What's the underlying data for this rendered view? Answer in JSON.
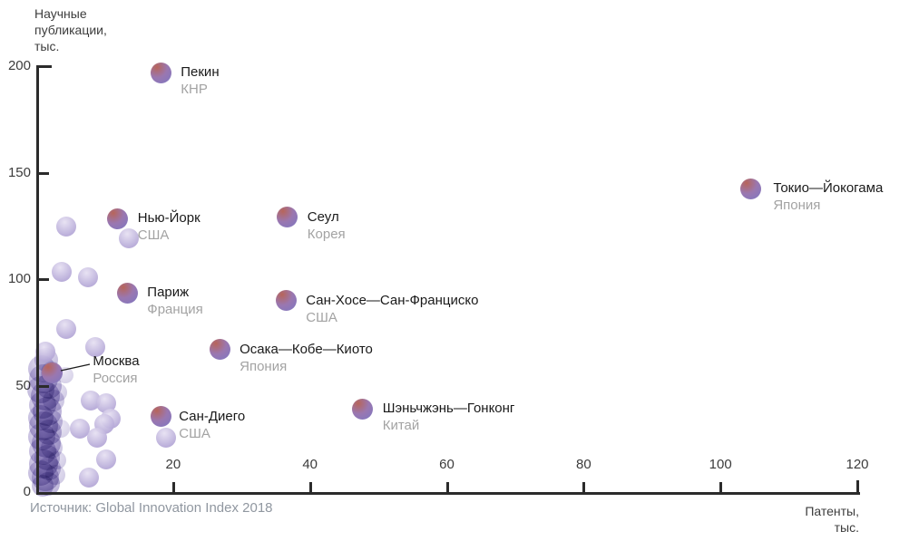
{
  "chart_data": {
    "type": "scatter",
    "ylabel": "Научные\nпубликации,\nтыс.",
    "xlabel": "Патенты,\nтыс.",
    "source": "Источник: Global Innovation Index 2018",
    "xlim": [
      0,
      120
    ],
    "ylim": [
      0,
      200
    ],
    "x_ticks": [
      20,
      40,
      60,
      80,
      100,
      120
    ],
    "y_ticks": [
      0,
      50,
      100,
      150,
      200
    ],
    "grid": false,
    "colors": {
      "city_bubble_red": "#b7655a",
      "city_bubble_purple": "#8577bd",
      "light_bubble": "#b3a6d6",
      "cluster_bubble": "#7a6ab3",
      "axis": "#2b2b2b",
      "city_text": "#1a1a1a",
      "country_text": "#a3a3a3"
    },
    "series": [
      {
        "name": "labeled-cities",
        "points": [
          {
            "city": "Пекин",
            "country": "КНР",
            "x": 18.2,
            "y": 197
          },
          {
            "city": "Токио—Йокогама",
            "country": "Япония",
            "x": 104.4,
            "y": 142.5,
            "dx": 25
          },
          {
            "city": "Нью-Йорк",
            "country": "США",
            "x": 11.9,
            "y": 128.5
          },
          {
            "city": "Сеул",
            "country": "Корея",
            "x": 36.7,
            "y": 129
          },
          {
            "city": "Париж",
            "country": "Франция",
            "x": 13.3,
            "y": 93.5
          },
          {
            "city": "Сан-Хосе—Сан-Франциско",
            "country": "США",
            "x": 36.5,
            "y": 90
          },
          {
            "city": "Осака—Кобе—Киото",
            "country": "Япония",
            "x": 26.8,
            "y": 67
          },
          {
            "city": "Москва",
            "country": "Россия",
            "x": 2.3,
            "y": 56,
            "dx": 45,
            "dy": -22,
            "leader": true
          },
          {
            "city": "Сан-Диего",
            "country": "США",
            "x": 18.2,
            "y": 35.5,
            "dx": 20
          },
          {
            "city": "Шэньчжэнь—Гонконг",
            "country": "Китай",
            "x": 47.7,
            "y": 39
          }
        ]
      },
      {
        "name": "unlabeled-light",
        "points": [
          [
            4.4,
            124.5
          ],
          [
            13.5,
            119
          ],
          [
            3.7,
            103.5
          ],
          [
            7.6,
            101
          ],
          [
            4.4,
            76.5
          ],
          [
            8.6,
            68
          ],
          [
            1.3,
            66
          ],
          [
            8,
            43
          ],
          [
            10.2,
            41.5
          ],
          [
            10.9,
            34.5
          ],
          [
            9.9,
            32
          ],
          [
            6.4,
            30
          ],
          [
            8.9,
            25.5
          ],
          [
            10.2,
            15.5
          ],
          [
            7.7,
            6.8
          ],
          [
            19,
            25.5
          ]
        ]
      },
      {
        "name": "origin-cluster",
        "points": [
          [
            1.5,
            62,
            13,
            0.45
          ],
          [
            0.8,
            58,
            15,
            0.5
          ],
          [
            2.2,
            56,
            12,
            0.4
          ],
          [
            1.0,
            53,
            16,
            0.5
          ],
          [
            1.8,
            50,
            14,
            0.5
          ],
          [
            0.6,
            48,
            15,
            0.5
          ],
          [
            1.3,
            45,
            16,
            0.55
          ],
          [
            2.5,
            43,
            12,
            0.4
          ],
          [
            0.9,
            41,
            15,
            0.5
          ],
          [
            1.6,
            38,
            16,
            0.55
          ],
          [
            0.7,
            35,
            14,
            0.5
          ],
          [
            2.1,
            33,
            13,
            0.45
          ],
          [
            1.1,
            31,
            16,
            0.55
          ],
          [
            1.8,
            28,
            14,
            0.5
          ],
          [
            0.8,
            26,
            15,
            0.5
          ],
          [
            1.4,
            23,
            16,
            0.55
          ],
          [
            2.3,
            21,
            12,
            0.4
          ],
          [
            0.9,
            19,
            15,
            0.5
          ],
          [
            1.6,
            16,
            14,
            0.5
          ],
          [
            1.0,
            13,
            16,
            0.55
          ],
          [
            1.9,
            11,
            13,
            0.45
          ],
          [
            0.7,
            9,
            14,
            0.5
          ],
          [
            1.3,
            7,
            15,
            0.5
          ],
          [
            1.7,
            4,
            13,
            0.5
          ],
          [
            0.9,
            3,
            12,
            0.5
          ],
          [
            3.2,
            47,
            10,
            0.35
          ],
          [
            3.6,
            30,
            10,
            0.3
          ],
          [
            3.0,
            15,
            10,
            0.35
          ],
          [
            4.2,
            55,
            9,
            0.3
          ],
          [
            2.8,
            8,
            11,
            0.35
          ]
        ]
      }
    ]
  }
}
